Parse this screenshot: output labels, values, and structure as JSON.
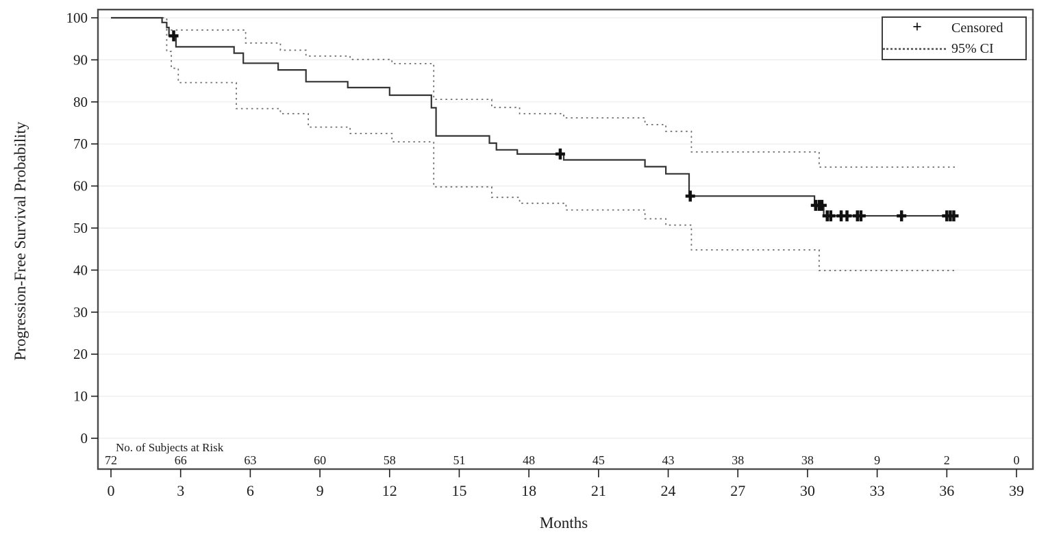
{
  "chart_data": {
    "type": "line",
    "subtype": "kaplan-meier-step",
    "title": "",
    "xlabel": "Months",
    "ylabel": "Progression-Free Survival Probability",
    "xlim": [
      0,
      39
    ],
    "ylim": [
      0,
      100
    ],
    "xticks": [
      0,
      3,
      6,
      9,
      12,
      15,
      18,
      21,
      24,
      27,
      30,
      33,
      36,
      39
    ],
    "yticks": [
      0,
      10,
      20,
      30,
      40,
      50,
      60,
      70,
      80,
      90,
      100
    ],
    "grid": "horizontal-light",
    "legend": {
      "position": "top-right",
      "items": [
        {
          "id": "censored",
          "glyph": "+",
          "label": "Censored"
        },
        {
          "id": "ci",
          "glyph": "dashed-line",
          "label": "95% CI"
        }
      ]
    },
    "series": [
      {
        "name": "Kaplan-Meier estimate",
        "style": "solid-step",
        "points": [
          [
            0,
            100
          ],
          [
            2.2,
            98.9
          ],
          [
            2.4,
            97.7
          ],
          [
            2.5,
            95.7
          ],
          [
            2.8,
            93.1
          ],
          [
            5.3,
            91.6
          ],
          [
            5.7,
            89.2
          ],
          [
            7.2,
            87.6
          ],
          [
            8.4,
            84.8
          ],
          [
            10.2,
            83.4
          ],
          [
            12,
            81.6
          ],
          [
            13.8,
            78.6
          ],
          [
            14,
            71.9
          ],
          [
            16.3,
            70.2
          ],
          [
            16.6,
            68.6
          ],
          [
            17.5,
            67.6
          ],
          [
            19.5,
            66.2
          ],
          [
            23,
            64.6
          ],
          [
            23.9,
            62.9
          ],
          [
            24.9,
            57.6
          ],
          [
            30.3,
            55.4
          ],
          [
            30.7,
            52.9
          ],
          [
            36.4,
            52.9
          ]
        ]
      },
      {
        "name": "95% CI upper",
        "style": "dashed-step",
        "points": [
          [
            0,
            100
          ],
          [
            2.4,
            97.1
          ],
          [
            5.8,
            94
          ],
          [
            7.3,
            92.3
          ],
          [
            8.4,
            90.9
          ],
          [
            10.3,
            90.1
          ],
          [
            12.1,
            89.1
          ],
          [
            13.9,
            80.6
          ],
          [
            16.4,
            78.7
          ],
          [
            17.6,
            77.2
          ],
          [
            19.5,
            76.2
          ],
          [
            23,
            74.6
          ],
          [
            23.9,
            73
          ],
          [
            25,
            68.1
          ],
          [
            30.5,
            64.5
          ],
          [
            36.4,
            64.5
          ]
        ]
      },
      {
        "name": "95% CI lower",
        "style": "dashed-step",
        "points": [
          [
            0,
            100
          ],
          [
            2.4,
            92
          ],
          [
            2.6,
            88
          ],
          [
            2.9,
            84.6
          ],
          [
            5.4,
            78.4
          ],
          [
            7.3,
            77.2
          ],
          [
            8.5,
            74
          ],
          [
            10.3,
            72.5
          ],
          [
            12.1,
            70.5
          ],
          [
            13.9,
            59.8
          ],
          [
            16.4,
            57.3
          ],
          [
            17.6,
            55.9
          ],
          [
            19.6,
            54.3
          ],
          [
            23,
            52.2
          ],
          [
            23.9,
            50.7
          ],
          [
            25,
            44.8
          ],
          [
            30.5,
            39.9
          ],
          [
            36.4,
            39.9
          ]
        ]
      }
    ],
    "censored_points": [
      [
        2.7,
        95.7
      ],
      [
        19.35,
        67.6
      ],
      [
        24.95,
        57.6
      ],
      [
        30.35,
        55.4
      ],
      [
        30.5,
        55.4
      ],
      [
        30.62,
        55.4
      ],
      [
        30.85,
        52.9
      ],
      [
        31,
        52.9
      ],
      [
        31.45,
        52.9
      ],
      [
        31.7,
        52.9
      ],
      [
        32.15,
        52.9
      ],
      [
        32.3,
        52.9
      ],
      [
        34.05,
        52.9
      ],
      [
        36,
        52.9
      ],
      [
        36.15,
        52.9
      ],
      [
        36.3,
        52.9
      ]
    ],
    "at_risk": {
      "label": "No. of Subjects at Risk",
      "times": [
        0,
        3,
        6,
        9,
        12,
        15,
        18,
        21,
        24,
        27,
        30,
        33,
        36,
        39
      ],
      "counts": [
        72,
        66,
        63,
        60,
        58,
        51,
        48,
        45,
        43,
        38,
        38,
        9,
        2,
        0
      ]
    },
    "colors": {
      "km_line": "#333333",
      "ci_line": "#6f6f6f",
      "censor_mark": "#111111",
      "gridline": "#ebebeb",
      "plot_border": "#4b4b4b",
      "tick": "#1f1f1f",
      "text": "#1c1c1c",
      "background": "#ffffff"
    }
  }
}
